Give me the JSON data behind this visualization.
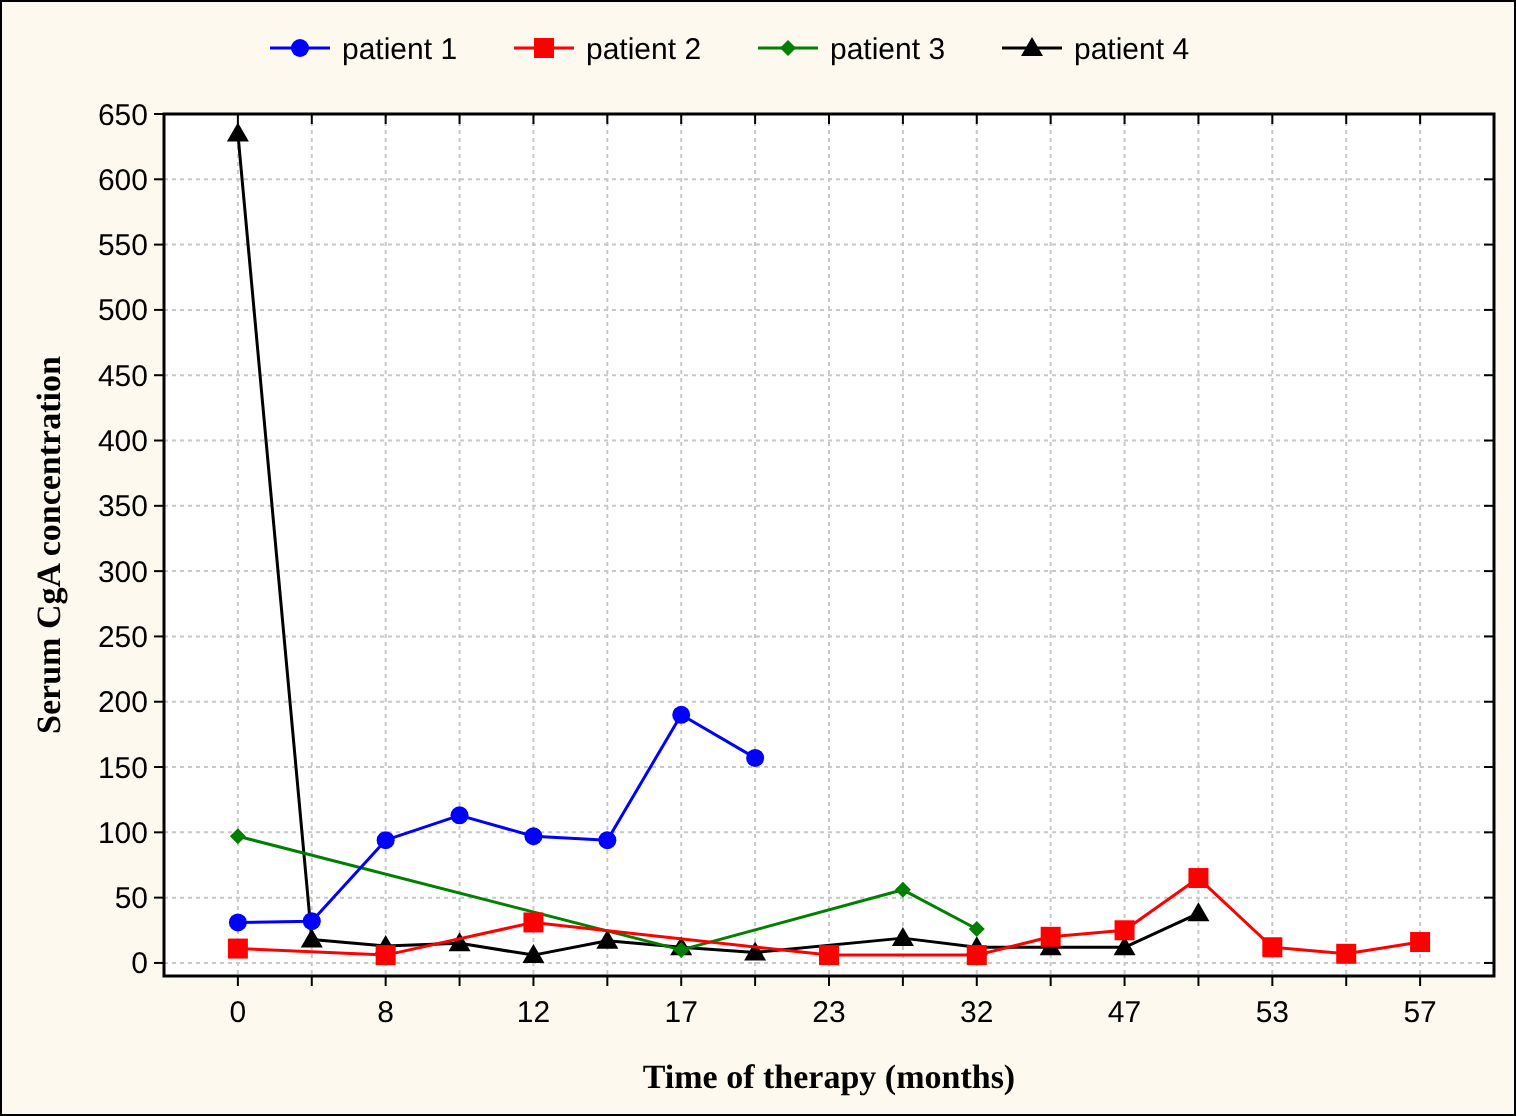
{
  "chart_data": {
    "type": "line",
    "xlabel": "Time of therapy (months)",
    "ylabel": "Serum CgA concentration",
    "categories": [
      "0",
      null,
      "8",
      null,
      "12",
      null,
      "17",
      null,
      "23",
      null,
      "32",
      null,
      "47",
      null,
      "53",
      null,
      "57"
    ],
    "ylim": [
      -10,
      650
    ],
    "yticks": [
      0,
      50,
      100,
      150,
      200,
      250,
      300,
      350,
      400,
      450,
      500,
      550,
      600,
      650
    ],
    "grid": true,
    "legend": "top",
    "series": [
      {
        "name": "patient 1",
        "color": "#0000ff",
        "marker": "circle",
        "values": [
          31,
          32,
          94,
          113,
          97,
          94,
          190,
          157,
          null,
          null,
          null,
          null,
          null,
          null,
          null,
          null,
          null
        ]
      },
      {
        "name": "patient 2",
        "color": "#ff0000",
        "marker": "square",
        "values": [
          11,
          null,
          6,
          null,
          31,
          null,
          null,
          null,
          6,
          null,
          6,
          20,
          25,
          65,
          12,
          7,
          16
        ]
      },
      {
        "name": "patient 3",
        "color": "#008000",
        "marker": "diamond",
        "values": [
          97,
          null,
          null,
          null,
          null,
          null,
          10,
          null,
          null,
          56,
          26,
          null,
          null,
          null,
          null,
          null,
          null
        ]
      },
      {
        "name": "patient 4",
        "color": "#000000",
        "marker": "triangle",
        "values": [
          635,
          18,
          13,
          15,
          6,
          17,
          12,
          8,
          null,
          19,
          12,
          12,
          12,
          38,
          null,
          null,
          null
        ]
      }
    ]
  }
}
